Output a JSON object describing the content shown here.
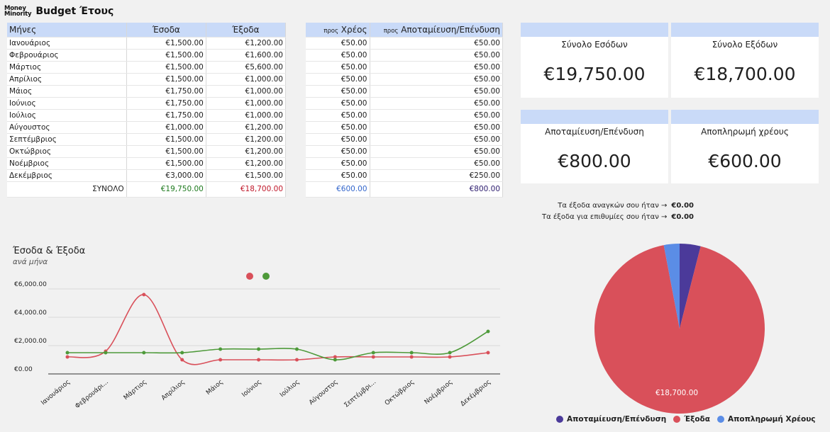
{
  "header": {
    "logo_line1": "Money",
    "logo_line2": "Minority",
    "title": "Budget Έτους"
  },
  "months_table": {
    "headers": [
      "Μήνες",
      "Έσοδα",
      "Έξοδα"
    ],
    "rows": [
      [
        "Ιανουάριος",
        "€1,500.00",
        "€1,200.00"
      ],
      [
        "Φεβρουάριος",
        "€1,500.00",
        "€1,600.00"
      ],
      [
        "Μάρτιος",
        "€1,500.00",
        "€5,600.00"
      ],
      [
        "Απρίλιος",
        "€1,500.00",
        "€1,000.00"
      ],
      [
        "Μάιος",
        "€1,750.00",
        "€1,000.00"
      ],
      [
        "Ιούνιος",
        "€1,750.00",
        "€1,000.00"
      ],
      [
        "Ιούλιος",
        "€1,750.00",
        "€1,000.00"
      ],
      [
        "Αύγουστος",
        "€1,000.00",
        "€1,200.00"
      ],
      [
        "Σεπτέμβριος",
        "€1,500.00",
        "€1,200.00"
      ],
      [
        "Οκτώβριος",
        "€1,500.00",
        "€1,200.00"
      ],
      [
        "Νοέμβριος",
        "€1,500.00",
        "€1,200.00"
      ],
      [
        "Δεκέμβριος",
        "€3,000.00",
        "€1,500.00"
      ]
    ],
    "total_label": "ΣΥΝΟΛΟ",
    "total_income": "€19,750.00",
    "total_expenses": "€18,700.00"
  },
  "alloc_table": {
    "h1_pre": "προς",
    "h1": "Χρέος",
    "h2_pre": "προς",
    "h2": "Αποταμίευση/Επένδυση",
    "rows": [
      [
        "€50.00",
        "€50.00"
      ],
      [
        "€50.00",
        "€50.00"
      ],
      [
        "€50.00",
        "€50.00"
      ],
      [
        "€50.00",
        "€50.00"
      ],
      [
        "€50.00",
        "€50.00"
      ],
      [
        "€50.00",
        "€50.00"
      ],
      [
        "€50.00",
        "€50.00"
      ],
      [
        "€50.00",
        "€50.00"
      ],
      [
        "€50.00",
        "€50.00"
      ],
      [
        "€50.00",
        "€50.00"
      ],
      [
        "€50.00",
        "€50.00"
      ],
      [
        "€50.00",
        "€250.00"
      ]
    ],
    "total_debt": "€600.00",
    "total_savings": "€800.00"
  },
  "cards": {
    "income": {
      "label": "Σύνολο Εσόδων",
      "value": "€19,750.00"
    },
    "expenses": {
      "label": "Σύνολο Εξόδων",
      "value": "€18,700.00"
    },
    "savings": {
      "label": "Αποταμίευση/Επένδυση",
      "value": "€800.00"
    },
    "debt": {
      "label": "Αποπληρωμή χρέους",
      "value": "€600.00"
    }
  },
  "needs": {
    "needs_label": "Τα έξοδα αναγκών σου ήταν →",
    "needs_value": "€0.00",
    "wants_label": "Τα έξοδα για επιθυμίες σου ήταν →",
    "wants_value": "€0.00"
  },
  "colors": {
    "income": "#4e9a3a",
    "expenses": "#d9505a",
    "savings": "#4b3a9a",
    "debt": "#5b8de6"
  },
  "chart_data": [
    {
      "type": "line",
      "title": "Έσοδα & Έξοδα",
      "subtitle": "ανά μήνα",
      "categories": [
        "Ιανουάριος",
        "Φεβρουάρι...",
        "Μάρτιος",
        "Απρίλιος",
        "Μάιος",
        "Ιούνιος",
        "Ιούλιος",
        "Αύγουστος",
        "Σεπτέμβρι...",
        "Οκτώβριος",
        "Νοέμβριος",
        "Δεκέμβριος"
      ],
      "series": [
        {
          "values": [
            1200,
            1600,
            5600,
            1000,
            1000,
            1000,
            1000,
            1200,
            1200,
            1200,
            1200,
            1500
          ]
        },
        {
          "values": [
            1500,
            1500,
            1500,
            1500,
            1750,
            1750,
            1750,
            1000,
            1500,
            1500,
            1500,
            3000
          ]
        }
      ],
      "y_ticks": [
        "€0.00",
        "€2,000.00",
        "€4,000.00",
        "€6,000.00"
      ],
      "ylim": [
        0,
        6000
      ],
      "grid": true,
      "legend": "top"
    },
    {
      "type": "pie",
      "slices": [
        {
          "label": "Αποταμίευση/Επένδυση",
          "value": 800
        },
        {
          "label": "Έξοδα",
          "value": 18700
        },
        {
          "label": "Αποπληρωμή Χρέους",
          "value": 600
        }
      ],
      "data_label": "€18,700.00",
      "legend": "bottom"
    }
  ]
}
